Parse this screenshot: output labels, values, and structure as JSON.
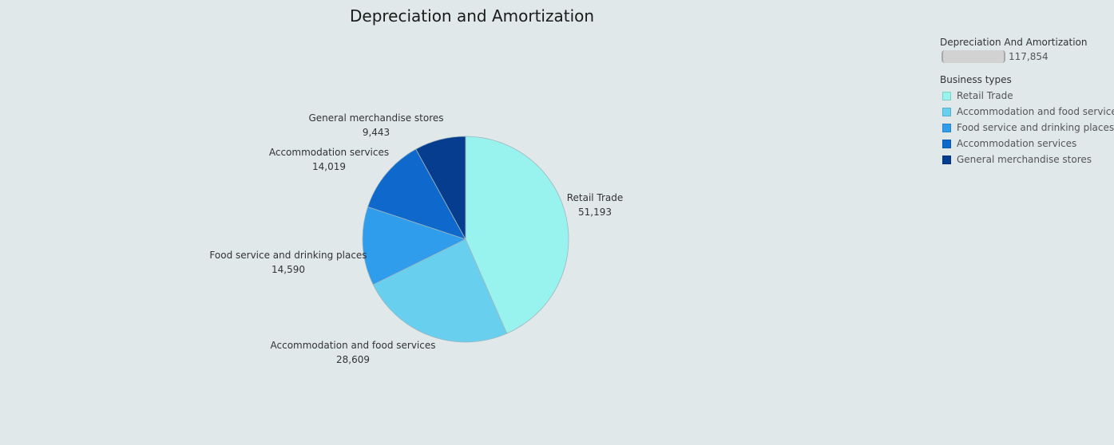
{
  "chart_data": {
    "type": "pie",
    "title": "Depreciation and Amortization",
    "size_legend": {
      "title": "Depreciation And Amortization",
      "value": "117,854"
    },
    "color_legend": {
      "title": "Business types",
      "items": [
        {
          "label": "Retail Trade",
          "color": "#98f2ed"
        },
        {
          "label": "Accommodation and food services",
          "color": "#68cfee"
        },
        {
          "label": "Food service and drinking places",
          "color": "#2f9cec"
        },
        {
          "label": "Accommodation services",
          "color": "#0f68cc"
        },
        {
          "label": "General merchandise stores",
          "color": "#073d8f"
        }
      ]
    },
    "slices": [
      {
        "label": "Retail Trade",
        "value": 51193,
        "value_label": "51,193",
        "color": "#98f2ed"
      },
      {
        "label": "Accommodation and food services",
        "value": 28609,
        "value_label": "28,609",
        "color": "#68cfee"
      },
      {
        "label": "Food service and drinking places",
        "value": 14590,
        "value_label": "14,590",
        "color": "#2f9cec"
      },
      {
        "label": "Accommodation services",
        "value": 14019,
        "value_label": "14,019",
        "color": "#0f68cc"
      },
      {
        "label": "General merchandise stores",
        "value": 9443,
        "value_label": "9,443",
        "color": "#073d8f"
      }
    ]
  }
}
